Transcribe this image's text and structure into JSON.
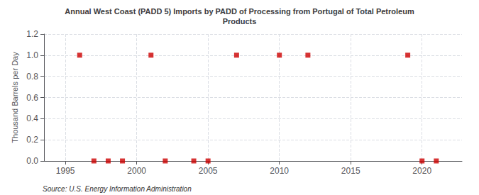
{
  "chart_data": {
    "type": "scatter",
    "title": "Annual West Coast (PADD 5) Imports by PADD of Processing from Portugal of Total Petroleum\nProducts",
    "ylabel": "Thousand Barrels per Day",
    "annotations": [
      "Source: U.S. Energy Information Administration"
    ],
    "x": [
      1996,
      1997,
      1998,
      1999,
      2001,
      2002,
      2004,
      2005,
      2007,
      2010,
      2012,
      2019,
      2020,
      2021
    ],
    "values": [
      1.0,
      0.0,
      0.0,
      0.0,
      1.0,
      0.0,
      0.0,
      0.0,
      1.0,
      1.0,
      1.0,
      1.0,
      0.0,
      0.0
    ],
    "color": "#cc0000",
    "marker": "square",
    "xlim": [
      1993.5,
      2022.8
    ],
    "ylim": [
      0.0,
      1.2
    ],
    "xticks": [
      1995,
      2000,
      2005,
      2010,
      2015,
      2020
    ],
    "yticks": [
      {
        "value": 0.0,
        "label": "0.0"
      },
      0.2,
      0.4,
      0.6,
      0.8,
      {
        "value": 1.0,
        "label": "1.0"
      },
      1.2
    ],
    "grid": true
  }
}
